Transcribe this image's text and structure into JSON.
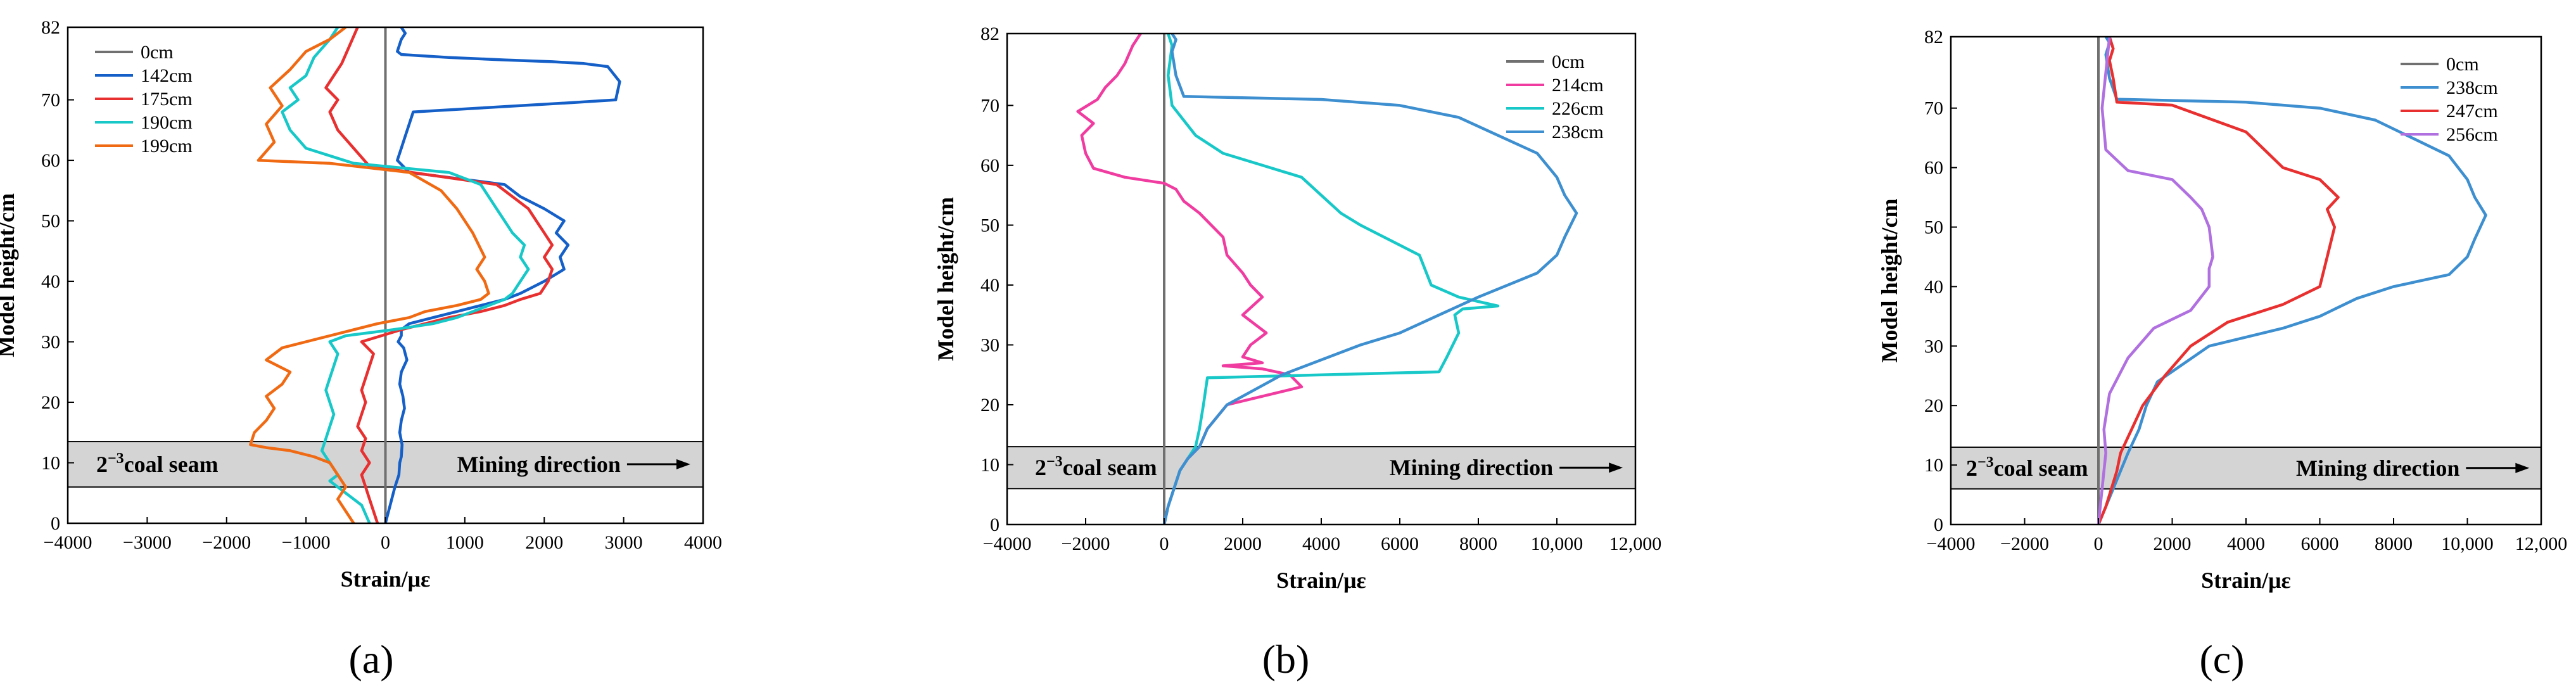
{
  "figure": {
    "panel_labels": [
      "(a)",
      "(b)",
      "(c)"
    ]
  },
  "chart_data": [
    {
      "type": "line",
      "panel_label": "(a)",
      "xlabel": "Strain/με",
      "ylabel": "Model height/cm",
      "xlim": [
        -4000,
        4000
      ],
      "ylim": [
        0,
        82
      ],
      "xticks": [
        -4000,
        -3000,
        -2000,
        -1000,
        0,
        1000,
        2000,
        3000,
        4000
      ],
      "xtick_labels": [
        "−4000",
        "−3000",
        "−2000",
        "−1000",
        "0",
        "1000",
        "2000",
        "3000",
        "4000"
      ],
      "yticks": [
        0,
        10,
        20,
        30,
        40,
        50,
        60,
        70,
        82
      ],
      "ytick_labels": [
        "0",
        "10",
        "20",
        "30",
        "40",
        "50",
        "60",
        "70",
        "82"
      ],
      "legend_position": "top-left",
      "coal_seam": {
        "y_range": [
          6,
          13.5
        ],
        "label_prefix": "2",
        "label_sup": "−3",
        "label_suffix": "coal seam",
        "direction_label": "Mining direction"
      },
      "series": [
        {
          "name": "0cm",
          "color": "#707070",
          "x": [
            0,
            0
          ],
          "y": [
            0,
            82
          ]
        },
        {
          "name": "142cm",
          "color": "#1560c8",
          "x": [
            0,
            60,
            120,
            170,
            180,
            200,
            210,
            180,
            200,
            240,
            220,
            180,
            200,
            270,
            230,
            160,
            200,
            200,
            300,
            600,
            900,
            1200,
            1500,
            1700,
            2000,
            2250,
            2200,
            2300,
            2150,
            2250,
            2000,
            1700,
            1500,
            300,
            150,
            200,
            250,
            300,
            350,
            2300,
            2900,
            2950,
            2800,
            2500,
            2100,
            1500,
            800,
            200,
            150,
            200,
            250,
            200
          ],
          "y": [
            0,
            3,
            6,
            8,
            10,
            11,
            13,
            15,
            17,
            19,
            21,
            23,
            25,
            27,
            29,
            30,
            31,
            32,
            33,
            34,
            35,
            36,
            37,
            38,
            40,
            42,
            44,
            46,
            48,
            50,
            52,
            54,
            56,
            58,
            60,
            62,
            64,
            66,
            68,
            69.5,
            70,
            73,
            75.5,
            76,
            76.3,
            76.6,
            77,
            77.5,
            78,
            80,
            81,
            82
          ]
        },
        {
          "name": "175cm",
          "color": "#e83030",
          "x": [
            -100,
            -150,
            -200,
            -250,
            -300,
            -200,
            -300,
            -250,
            -350,
            -300,
            -250,
            -300,
            -250,
            -200,
            -150,
            -300,
            -50,
            200,
            500,
            800,
            1200,
            1500,
            1700,
            1950,
            2050,
            2100,
            2000,
            2100,
            2000,
            1900,
            1800,
            1400,
            -200,
            -400,
            -600,
            -700,
            -600,
            -750,
            -650,
            -550,
            -450,
            -350
          ],
          "y": [
            0,
            2,
            4,
            6,
            8,
            10,
            12,
            14,
            16,
            18,
            20,
            22,
            24,
            26,
            28,
            30,
            31,
            32,
            33,
            34,
            35,
            36,
            37,
            38,
            40,
            42,
            44,
            46,
            48,
            50,
            52,
            56,
            59,
            62,
            65,
            68,
            70,
            72,
            74,
            76,
            79,
            82
          ]
        },
        {
          "name": "190cm",
          "color": "#18c8c8",
          "x": [
            -200,
            -300,
            -500,
            -700,
            -600,
            -700,
            -800,
            -750,
            -700,
            -650,
            -700,
            -750,
            -700,
            -650,
            -600,
            -700,
            -500,
            100,
            600,
            900,
            1100,
            1300,
            1500,
            1600,
            1700,
            1800,
            1700,
            1750,
            1600,
            1500,
            1400,
            1300,
            1200,
            800,
            -400,
            -1000,
            -1200,
            -1300,
            -1100,
            -1200,
            -1000,
            -900,
            -700,
            -600
          ],
          "y": [
            0,
            3,
            5,
            7,
            8,
            10,
            12,
            14,
            16,
            18,
            20,
            22,
            24,
            26,
            28,
            30,
            31,
            32,
            33,
            34,
            35,
            36,
            37,
            38,
            40,
            42,
            44,
            46,
            48,
            50,
            52,
            54,
            56,
            58,
            59.5,
            62,
            65,
            68,
            70,
            72,
            74,
            77,
            80,
            82
          ]
        },
        {
          "name": "199cm",
          "color": "#f06a14",
          "x": [
            -400,
            -500,
            -600,
            -500,
            -600,
            -700,
            -900,
            -1200,
            -1500,
            -1700,
            -1650,
            -1500,
            -1400,
            -1500,
            -1300,
            -1200,
            -1500,
            -1300,
            -1000,
            -700,
            -400,
            -100,
            300,
            500,
            900,
            1200,
            1300,
            1250,
            1150,
            1250,
            1100,
            900,
            700,
            300,
            -700,
            -1600,
            -1400,
            -1500,
            -1300,
            -1450,
            -1200,
            -1000,
            -700,
            -500
          ],
          "y": [
            0,
            2,
            4,
            6,
            8,
            10,
            11,
            12,
            12.5,
            13,
            15,
            17,
            19,
            21,
            23,
            25,
            27,
            29,
            30,
            31,
            32,
            33,
            34,
            35,
            36,
            37,
            38,
            40,
            42,
            44,
            48,
            52,
            55,
            58,
            59.5,
            60,
            63,
            66,
            69,
            72,
            75,
            78,
            80,
            82
          ]
        }
      ]
    },
    {
      "type": "line",
      "panel_label": "(b)",
      "xlabel": "Strain/με",
      "ylabel": "Model height/cm",
      "xlim": [
        -4000,
        12000
      ],
      "ylim": [
        0,
        82
      ],
      "xticks": [
        -4000,
        -2000,
        0,
        2000,
        4000,
        6000,
        8000,
        10000,
        12000
      ],
      "xtick_labels": [
        "−4000",
        "−2000",
        "0",
        "2000",
        "4000",
        "6000",
        "8000",
        "10,000",
        "12,000"
      ],
      "yticks": [
        0,
        10,
        20,
        30,
        40,
        50,
        60,
        70,
        82
      ],
      "ytick_labels": [
        "0",
        "10",
        "20",
        "30",
        "40",
        "50",
        "60",
        "70",
        "82"
      ],
      "legend_position": "top-right",
      "coal_seam": {
        "y_range": [
          6,
          13
        ],
        "label_prefix": "2",
        "label_sup": "−3",
        "label_suffix": "coal seam",
        "direction_label": "Mining direction"
      },
      "series": [
        {
          "name": "0cm",
          "color": "#707070",
          "x": [
            0,
            0
          ],
          "y": [
            0,
            82
          ]
        },
        {
          "name": "214cm",
          "color": "#f03ca0",
          "x": [
            0,
            100,
            200,
            300,
            400,
            600,
            900,
            1100,
            1600,
            3500,
            3200,
            2500,
            1500,
            2500,
            2000,
            2200,
            2600,
            2000,
            2500,
            2200,
            2000,
            1600,
            1500,
            1200,
            900,
            500,
            300,
            0,
            -1000,
            -1800,
            -2000,
            -2100,
            -1800,
            -2200,
            -1700,
            -1500,
            -1200,
            -1000,
            -800,
            -600
          ],
          "y": [
            0,
            3,
            5,
            7,
            9,
            11,
            13,
            16,
            20,
            23,
            25,
            26,
            26.5,
            27,
            28,
            30,
            32,
            35,
            38,
            40,
            42,
            45,
            48,
            50,
            52,
            54,
            56,
            57,
            58,
            59.5,
            62,
            65,
            67,
            69,
            71,
            73,
            75,
            77,
            80,
            82
          ]
        },
        {
          "name": "226cm",
          "color": "#18c8c8",
          "x": [
            0,
            100,
            200,
            300,
            400,
            600,
            800,
            900,
            1000,
            1100,
            4000,
            7000,
            7200,
            7500,
            7400,
            7600,
            8500,
            7500,
            6800,
            6500,
            5000,
            4500,
            4000,
            3500,
            2500,
            1500,
            800,
            200,
            100,
            200,
            100
          ],
          "y": [
            0,
            3,
            5,
            7,
            9,
            11,
            13,
            16,
            20,
            24.5,
            25,
            25.5,
            28,
            32,
            35,
            36,
            36.5,
            38,
            40,
            45,
            50,
            52,
            55,
            58,
            60,
            62,
            65,
            70,
            75,
            80,
            82
          ]
        },
        {
          "name": "238cm",
          "color": "#3d8fd0",
          "x": [
            0,
            100,
            200,
            300,
            400,
            600,
            900,
            1100,
            1600,
            3000,
            5000,
            6000,
            7000,
            8000,
            9500,
            10000,
            10200,
            10500,
            10200,
            10000,
            9500,
            8500,
            7500,
            6000,
            4000,
            500,
            300,
            200,
            300,
            200
          ],
          "y": [
            0,
            3,
            5,
            7,
            9,
            11,
            13,
            16,
            20,
            25,
            30,
            32,
            35,
            38,
            42,
            45,
            48,
            52,
            55,
            58,
            62,
            65,
            68,
            70,
            71,
            71.5,
            75,
            79,
            81,
            82
          ]
        }
      ]
    },
    {
      "type": "line",
      "panel_label": "(c)",
      "xlabel": "Strain/με",
      "ylabel": "Model height/cm",
      "xlim": [
        -4000,
        12000
      ],
      "ylim": [
        0,
        82
      ],
      "xticks": [
        -4000,
        -2000,
        0,
        2000,
        4000,
        6000,
        8000,
        10000,
        12000
      ],
      "xtick_labels": [
        "−4000",
        "−2000",
        "0",
        "2000",
        "4000",
        "6000",
        "8000",
        "10,000",
        "12,000"
      ],
      "yticks": [
        0,
        10,
        20,
        30,
        40,
        50,
        60,
        70,
        82
      ],
      "ytick_labels": [
        "0",
        "10",
        "20",
        "30",
        "40",
        "50",
        "60",
        "70",
        "82"
      ],
      "legend_position": "top-right",
      "coal_seam": {
        "y_range": [
          6,
          13
        ],
        "label_prefix": "2",
        "label_sup": "−3",
        "label_suffix": "coal seam",
        "direction_label": "Mining direction"
      },
      "series": [
        {
          "name": "0cm",
          "color": "#707070",
          "x": [
            0,
            0
          ],
          "y": [
            0,
            82
          ]
        },
        {
          "name": "238cm",
          "color": "#3d8fd0",
          "x": [
            0,
            200,
            400,
            600,
            800,
            1100,
            1300,
            1600,
            3000,
            5000,
            6000,
            7000,
            8000,
            9500,
            10000,
            10200,
            10500,
            10200,
            10000,
            9500,
            8500,
            7500,
            6000,
            4000,
            500,
            300,
            200,
            300,
            200
          ],
          "y": [
            0,
            3,
            6,
            9,
            12,
            16,
            20,
            24,
            30,
            33,
            35,
            38,
            40,
            42,
            45,
            48,
            52,
            55,
            58,
            62,
            65,
            68,
            70,
            71,
            71.5,
            75,
            79,
            81,
            82
          ]
        },
        {
          "name": "247cm",
          "color": "#e83030",
          "x": [
            0,
            200,
            350,
            500,
            600,
            900,
            1200,
            1800,
            2500,
            3500,
            5000,
            6000,
            6200,
            6400,
            6200,
            6500,
            6000,
            5000,
            4500,
            4000,
            2000,
            500,
            400,
            300,
            400,
            300
          ],
          "y": [
            0,
            3,
            6,
            9,
            12,
            16,
            20,
            25,
            30,
            34,
            37,
            40,
            45,
            50,
            53,
            55,
            58,
            60,
            63,
            66,
            70.5,
            71,
            75,
            78,
            80,
            82
          ]
        },
        {
          "name": "256cm",
          "color": "#b070e0",
          "x": [
            0,
            50,
            100,
            150,
            200,
            150,
            300,
            800,
            1500,
            2500,
            3000,
            3000,
            3100,
            3000,
            2800,
            2500,
            2000,
            800,
            200,
            100,
            200,
            300
          ],
          "y": [
            0,
            3,
            6,
            9,
            12,
            16,
            22,
            28,
            33,
            36,
            40,
            43,
            45,
            50,
            53,
            55,
            58,
            59.5,
            63,
            70,
            76,
            82
          ]
        }
      ]
    }
  ]
}
